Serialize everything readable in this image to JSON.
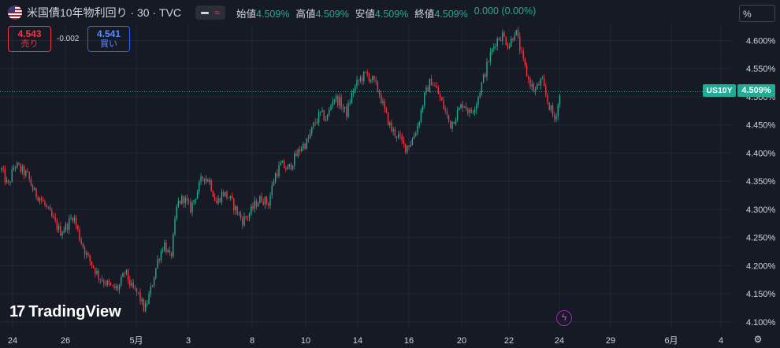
{
  "header": {
    "symbol_title": "米国債10年物利回り · 30 · TVC",
    "ohlc": [
      {
        "label": "始値",
        "value": "4.509%"
      },
      {
        "label": "高値",
        "value": "4.509%"
      },
      {
        "label": "安値",
        "value": "4.509%"
      },
      {
        "label": "終値",
        "value": "4.509%"
      }
    ],
    "change": "0.000 (0.00%)"
  },
  "trade": {
    "sell_price": "4.543",
    "sell_label": "売り",
    "spread": "-0.002",
    "buy_price": "4.541",
    "buy_label": "買い"
  },
  "scale_button": "%",
  "price_tag": {
    "symbol": "US10Y",
    "price": "4.509%"
  },
  "branding": {
    "logo_text": "TradingView",
    "logo_mark": "17"
  },
  "colors": {
    "up": "#22ab94",
    "down": "#f23645",
    "background": "#161a25",
    "grid": "#232733"
  },
  "chart_data": {
    "type": "candlestick",
    "ylim": [
      4.09,
      4.63
    ],
    "y_ticks": [
      4.1,
      4.15,
      4.2,
      4.25,
      4.3,
      4.35,
      4.4,
      4.45,
      4.5,
      4.55,
      4.6
    ],
    "y_tick_labels": [
      "4.100%",
      "4.150%",
      "4.200%",
      "4.250%",
      "4.300%",
      "4.350%",
      "4.400%",
      "4.450%",
      "4.500%",
      "4.550%",
      "4.600%"
    ],
    "x_labels": [
      "24",
      "26",
      "5月",
      "3",
      "8",
      "10",
      "14",
      "16",
      "20",
      "22",
      "24",
      "29",
      "6月",
      "4"
    ],
    "last_price": 4.509,
    "price_path": [
      [
        0,
        4.37
      ],
      [
        1,
        4.34
      ],
      [
        2,
        4.38
      ],
      [
        3,
        4.37
      ],
      [
        4,
        4.36
      ],
      [
        5,
        4.33
      ],
      [
        6,
        4.32
      ],
      [
        7,
        4.3
      ],
      [
        8,
        4.28
      ],
      [
        9,
        4.26
      ],
      [
        10,
        4.27
      ],
      [
        11,
        4.29
      ],
      [
        12,
        4.25
      ],
      [
        13,
        4.22
      ],
      [
        14,
        4.2
      ],
      [
        15,
        4.18
      ],
      [
        16,
        4.17
      ],
      [
        17,
        4.16
      ],
      [
        18,
        4.16
      ],
      [
        19,
        4.19
      ],
      [
        20,
        4.16
      ],
      [
        21,
        4.15
      ],
      [
        22,
        4.12
      ],
      [
        23,
        4.16
      ],
      [
        24,
        4.21
      ],
      [
        25,
        4.24
      ],
      [
        26,
        4.21
      ],
      [
        27,
        4.31
      ],
      [
        28,
        4.32
      ],
      [
        29,
        4.3
      ],
      [
        30,
        4.33
      ],
      [
        31,
        4.36
      ],
      [
        32,
        4.35
      ],
      [
        33,
        4.31
      ],
      [
        34,
        4.33
      ],
      [
        35,
        4.32
      ],
      [
        36,
        4.3
      ],
      [
        37,
        4.28
      ],
      [
        38,
        4.29
      ],
      [
        39,
        4.31
      ],
      [
        40,
        4.32
      ],
      [
        41,
        4.31
      ],
      [
        42,
        4.36
      ],
      [
        43,
        4.38
      ],
      [
        44,
        4.37
      ],
      [
        45,
        4.39
      ],
      [
        46,
        4.41
      ],
      [
        47,
        4.42
      ],
      [
        48,
        4.45
      ],
      [
        49,
        4.47
      ],
      [
        50,
        4.46
      ],
      [
        51,
        4.5
      ],
      [
        52,
        4.49
      ],
      [
        53,
        4.47
      ],
      [
        54,
        4.51
      ],
      [
        55,
        4.53
      ],
      [
        56,
        4.54
      ],
      [
        57,
        4.53
      ],
      [
        58,
        4.51
      ],
      [
        59,
        4.47
      ],
      [
        60,
        4.44
      ],
      [
        61,
        4.43
      ],
      [
        62,
        4.41
      ],
      [
        63,
        4.42
      ],
      [
        64,
        4.45
      ],
      [
        65,
        4.5
      ],
      [
        66,
        4.53
      ],
      [
        67,
        4.51
      ],
      [
        68,
        4.48
      ],
      [
        69,
        4.45
      ],
      [
        70,
        4.47
      ],
      [
        71,
        4.49
      ],
      [
        72,
        4.47
      ],
      [
        73,
        4.49
      ],
      [
        74,
        4.53
      ],
      [
        75,
        4.57
      ],
      [
        76,
        4.6
      ],
      [
        77,
        4.61
      ],
      [
        78,
        4.59
      ],
      [
        79,
        4.62
      ],
      [
        80,
        4.57
      ],
      [
        81,
        4.53
      ],
      [
        82,
        4.51
      ],
      [
        83,
        4.53
      ],
      [
        84,
        4.49
      ],
      [
        85,
        4.46
      ],
      [
        86,
        4.509
      ]
    ]
  }
}
